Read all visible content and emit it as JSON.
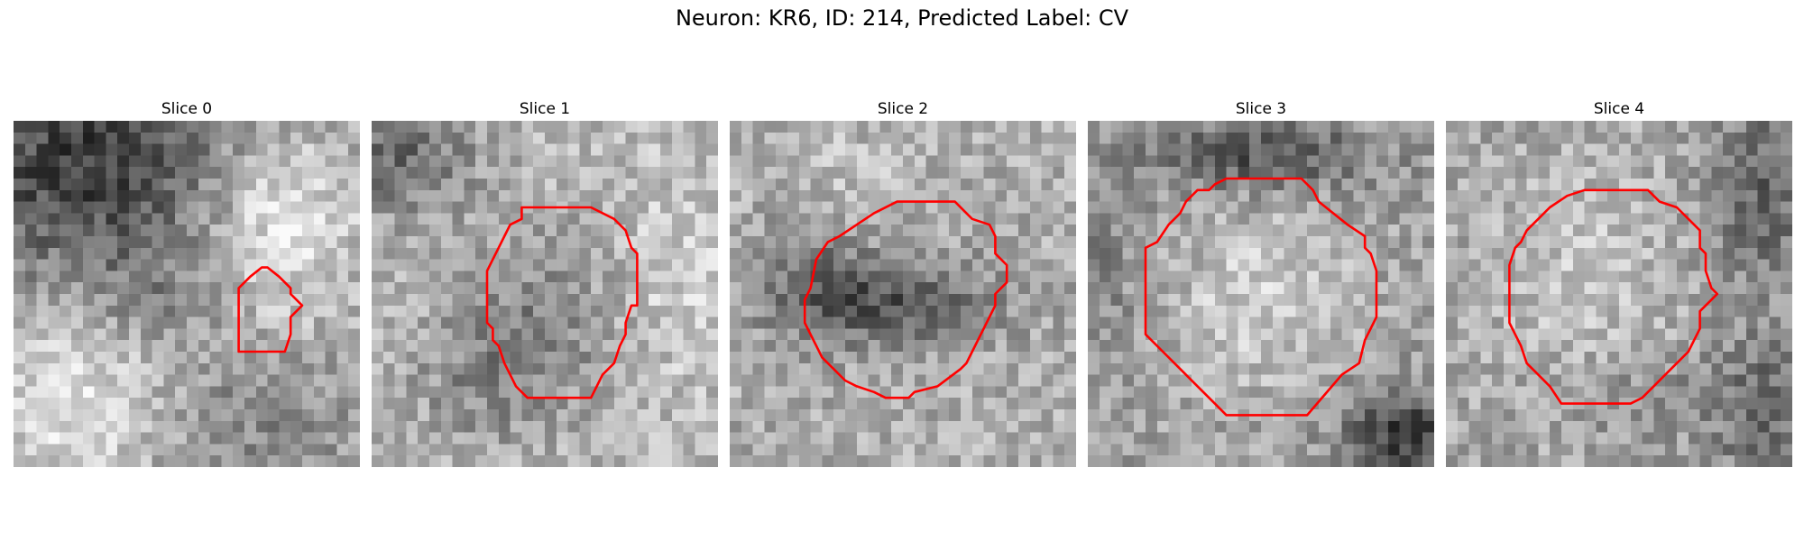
{
  "figure": {
    "title": "Neuron: KR6, ID: 214, Predicted Label: CV"
  },
  "panels": [
    {
      "title": "Slice 0",
      "seed": 11,
      "scene": "slice0"
    },
    {
      "title": "Slice 1",
      "seed": 23,
      "scene": "slice1"
    },
    {
      "title": "Slice 2",
      "seed": 37,
      "scene": "slice2"
    },
    {
      "title": "Slice 3",
      "seed": 51,
      "scene": "slice3"
    },
    {
      "title": "Slice 4",
      "seed": 67,
      "scene": "slice4"
    }
  ],
  "colors": {
    "contour": "#ff0000",
    "background": "#ffffff"
  },
  "image_style": "grayscale-pixelated",
  "grid_size": 30
}
